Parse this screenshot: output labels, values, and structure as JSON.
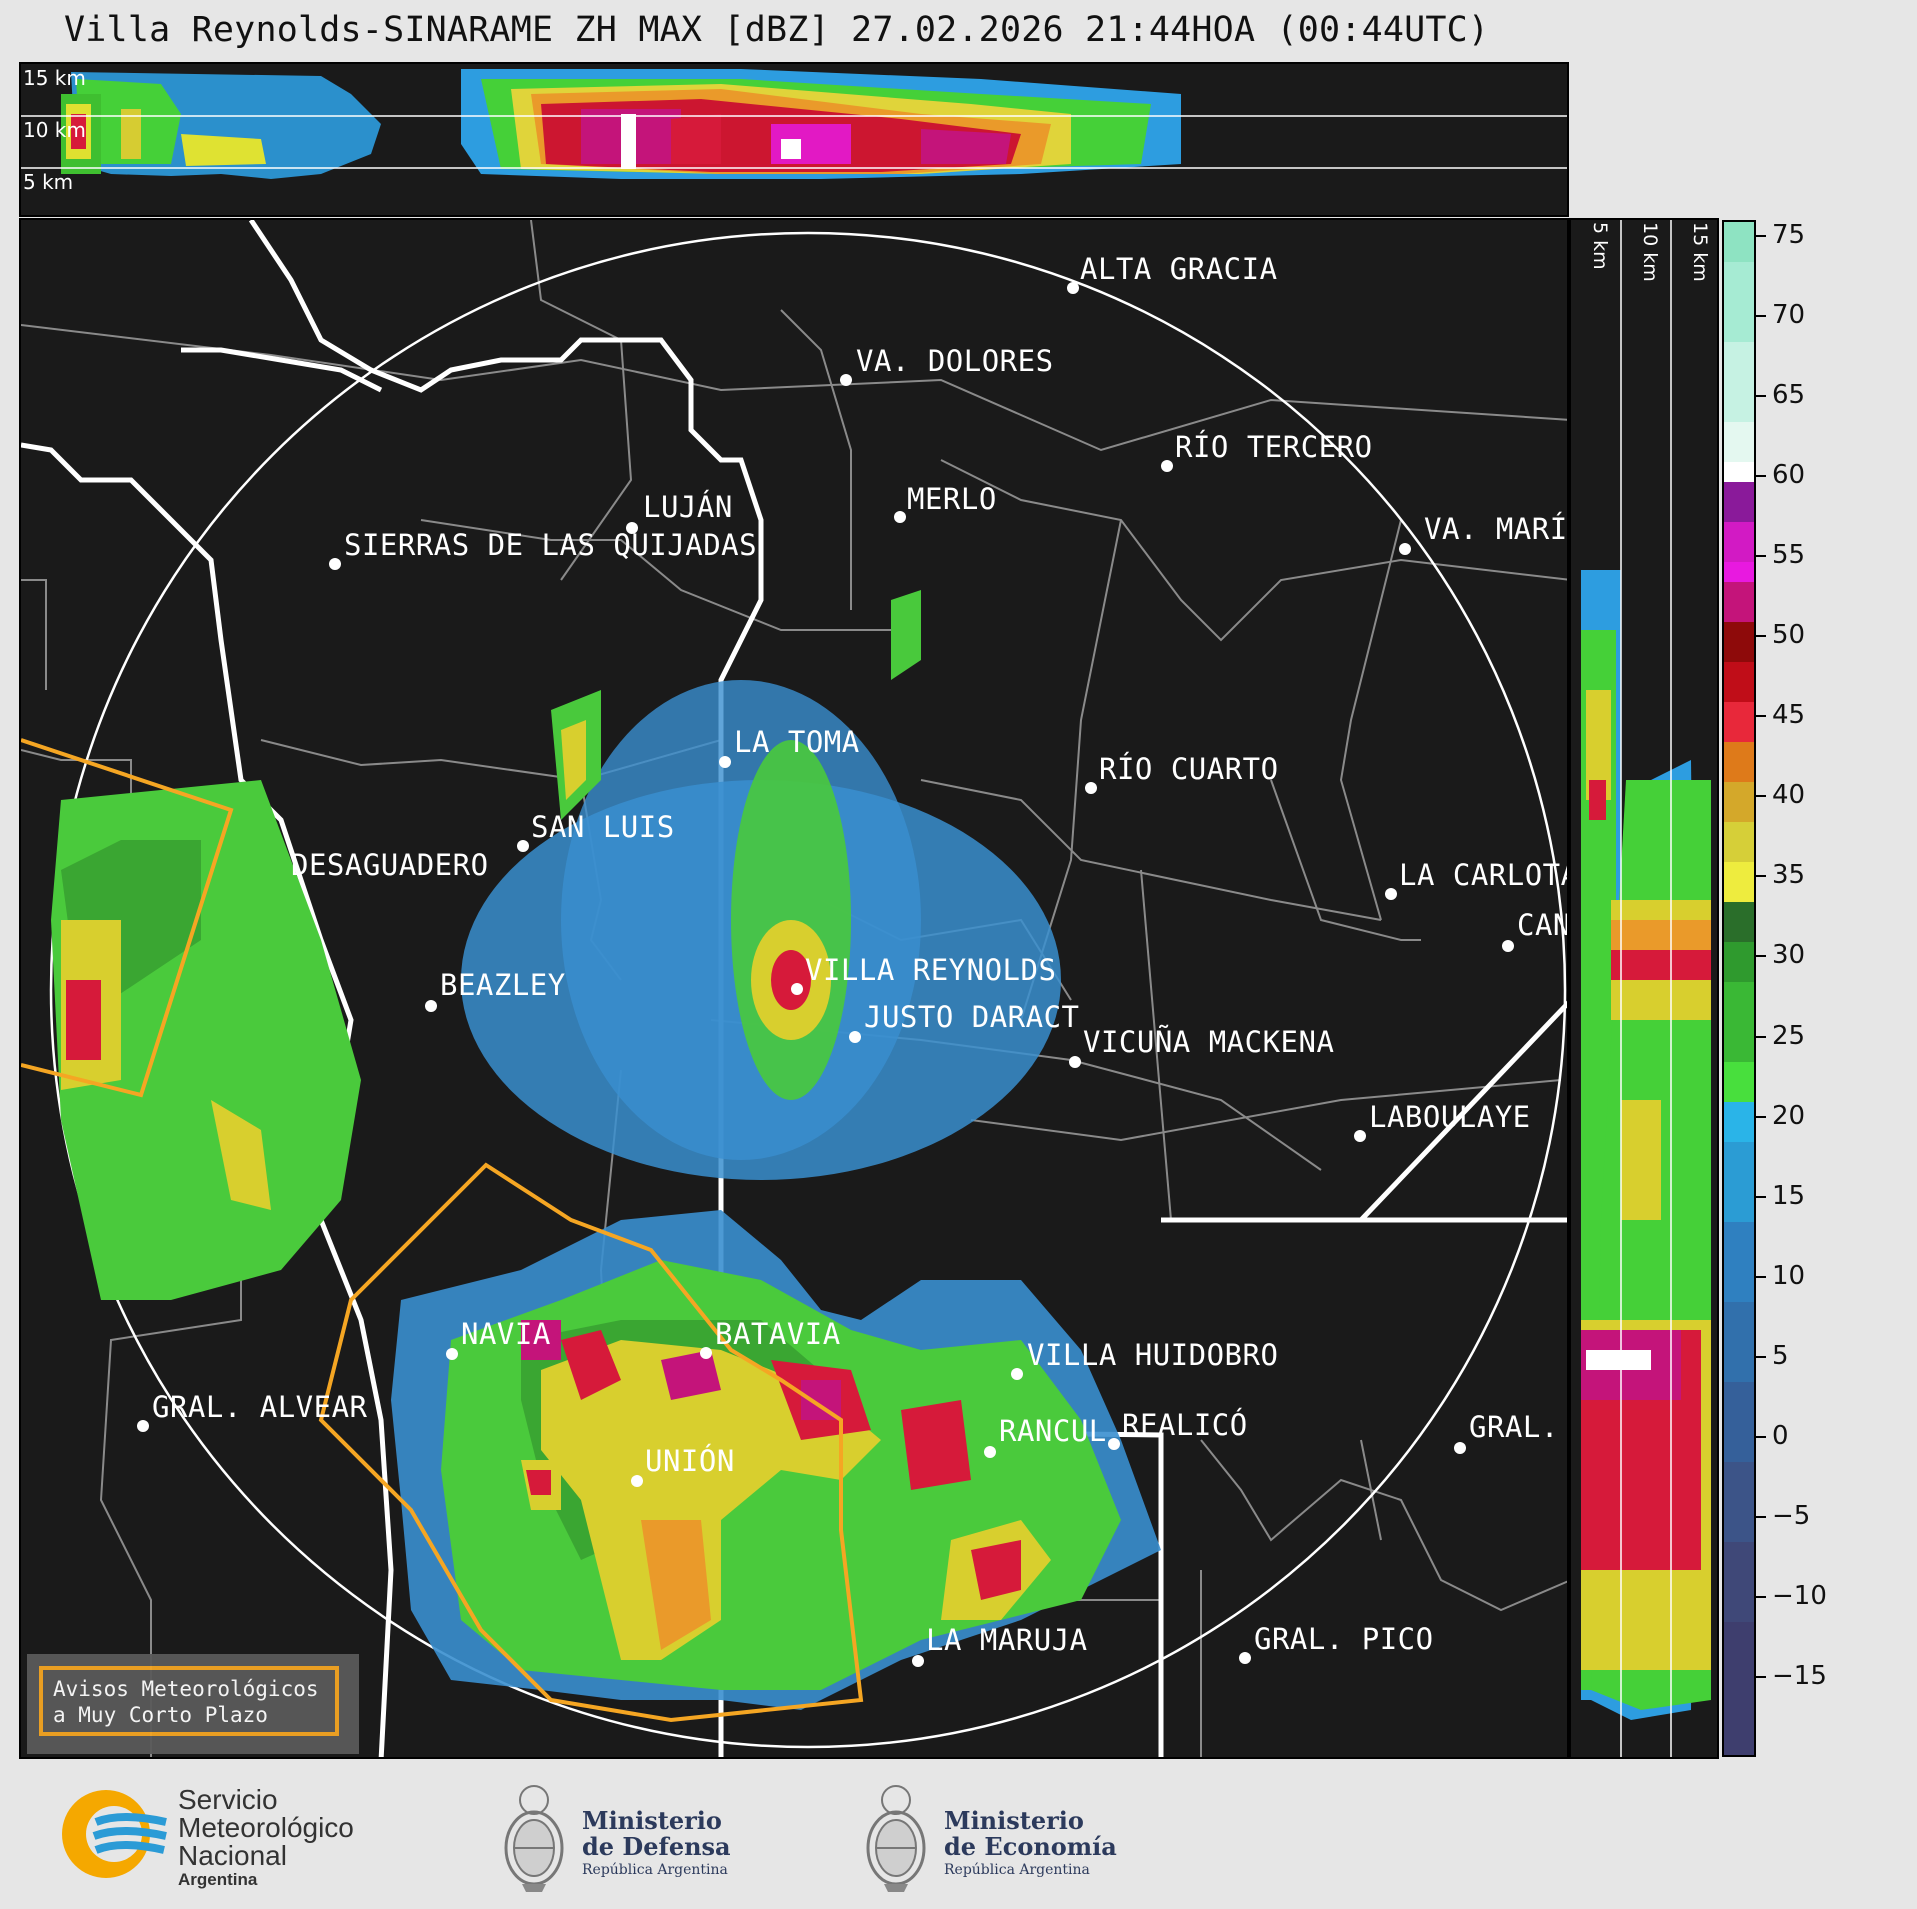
{
  "title": "Villa Reynolds-SINARAME ZH MAX [dBZ] 27.02.2026 21:44HOA (00:44UTC)",
  "top_panel": {
    "altitude_labels": [
      "15 km",
      "10 km",
      "5 km"
    ]
  },
  "side_panel": {
    "altitude_labels": [
      "5 km",
      "10 km",
      "15 km"
    ]
  },
  "map": {
    "cities": [
      {
        "name": "ALTA GRACIA"
      },
      {
        "name": "VA. DOLORES"
      },
      {
        "name": "RÍO TERCERO"
      },
      {
        "name": "MERLO"
      },
      {
        "name": "LUJÁN"
      },
      {
        "name": "VA. MARÍ"
      },
      {
        "name": "SIERRAS DE LAS QUIJADAS"
      },
      {
        "name": "LA TOMA"
      },
      {
        "name": "RÍO CUARTO"
      },
      {
        "name": "SAN LUIS"
      },
      {
        "name": "DESAGUADERO"
      },
      {
        "name": "LA CARLOTA"
      },
      {
        "name": "CAN"
      },
      {
        "name": "VILLA REYNOLDS"
      },
      {
        "name": "BEAZLEY"
      },
      {
        "name": "JUSTO DARACT"
      },
      {
        "name": "VICUÑA MACKENA"
      },
      {
        "name": "LABOULAYE"
      },
      {
        "name": "NAVIA"
      },
      {
        "name": "BATAVIA"
      },
      {
        "name": "VILLA HUIDOBRO"
      },
      {
        "name": "GRAL. ALVEAR"
      },
      {
        "name": "RANCUL"
      },
      {
        "name": "REALICÓ"
      },
      {
        "name": "GRAL."
      },
      {
        "name": "UNIÓN"
      },
      {
        "name": "LA MARUJA"
      },
      {
        "name": "GRAL. PICO"
      }
    ],
    "legend_line1": "Avisos Meteorológicos",
    "legend_line2": "a Muy Corto Plazo",
    "warning_color": "#f5a623"
  },
  "colorbar": {
    "unit": "dBZ",
    "ticks": [
      "75",
      "70",
      "65",
      "60",
      "55",
      "50",
      "45",
      "40",
      "35",
      "30",
      "25",
      "20",
      "15",
      "10",
      "5",
      "0",
      "−5",
      "−10",
      "−15"
    ],
    "range": [
      -20,
      76
    ]
  },
  "footer": {
    "smn_line1": "Servicio",
    "smn_line2": "Meteorológico",
    "smn_line3": "Nacional",
    "smn_line4": "Argentina",
    "defensa_line1": "Ministerio",
    "defensa_line2": "de Defensa",
    "defensa_line3": "República Argentina",
    "economia_line1": "Ministerio",
    "economia_line2": "de Economía",
    "economia_line3": "República Argentina"
  }
}
